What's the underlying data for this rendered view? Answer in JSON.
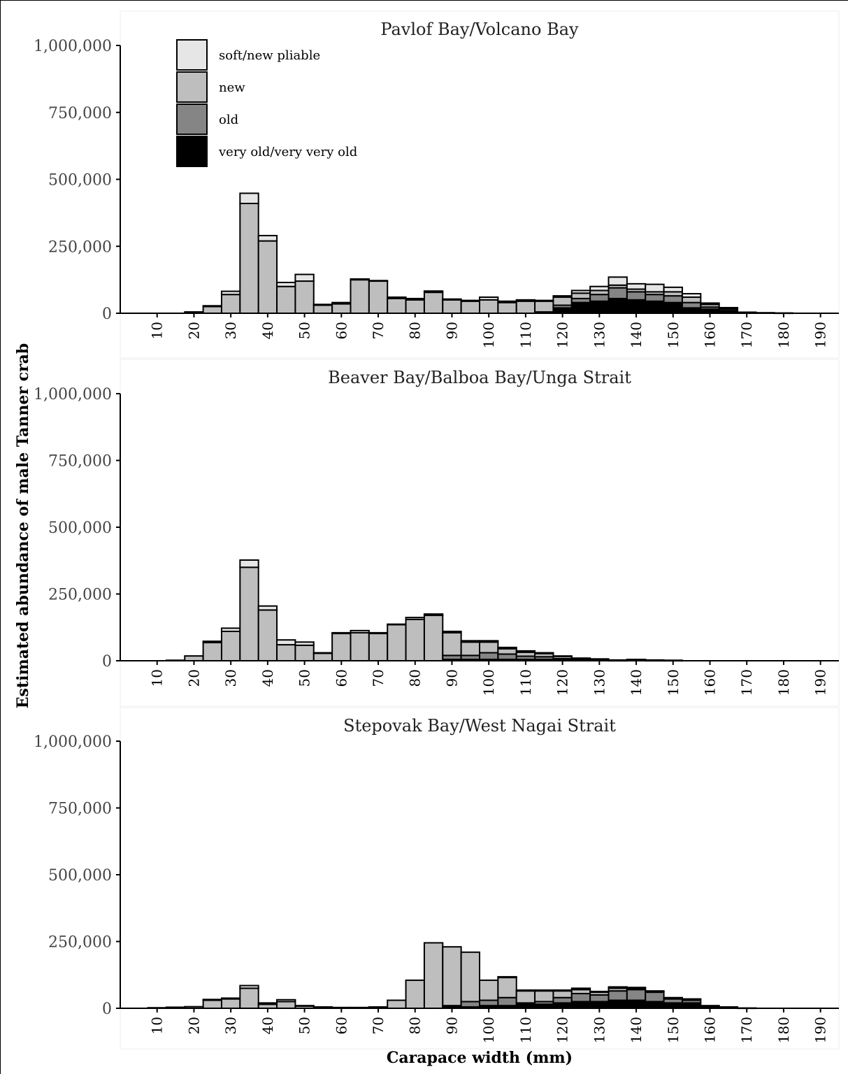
{
  "figure": {
    "ylabel": "Estimated abundance of male Tanner crab",
    "xlabel": "Carapace width (mm)"
  },
  "colors": {
    "soft_new_pliable": "#e6e6e6",
    "new": "#bebebe",
    "old": "#858585",
    "very_old": "#000000"
  },
  "legend": {
    "placement": "top-left (first panel)",
    "entries": [
      "soft/new pliable",
      "new",
      "old",
      "very old/very very old"
    ]
  },
  "chart_data": [
    {
      "type": "bar",
      "stacked": true,
      "title": "Pavlof Bay/Volcano Bay",
      "xlim": [
        0,
        195
      ],
      "ylim": [
        0,
        1000000
      ],
      "yticks": [
        "0",
        "250,000",
        "500,000",
        "750,000",
        "1,000,000"
      ],
      "xticks": [
        "10",
        "20",
        "30",
        "40",
        "50",
        "60",
        "70",
        "80",
        "90",
        "100",
        "110",
        "120",
        "130",
        "140",
        "150",
        "160",
        "170",
        "180",
        "190"
      ],
      "x": [
        20,
        25,
        30,
        35,
        40,
        45,
        50,
        55,
        60,
        65,
        70,
        75,
        80,
        85,
        90,
        95,
        100,
        105,
        110,
        115,
        120,
        125,
        130,
        135,
        140,
        145,
        150,
        155,
        160,
        165,
        170,
        175,
        180
      ],
      "series": [
        {
          "name": "very old/very very old",
          "values": [
            0,
            0,
            0,
            0,
            0,
            0,
            0,
            0,
            0,
            0,
            0,
            0,
            0,
            0,
            0,
            0,
            0,
            0,
            0,
            0,
            20000,
            40000,
            45000,
            55000,
            50000,
            45000,
            40000,
            20000,
            15000,
            10000,
            3000,
            2000,
            1000
          ]
        },
        {
          "name": "old",
          "values": [
            0,
            0,
            0,
            0,
            0,
            0,
            0,
            0,
            0,
            0,
            0,
            0,
            0,
            0,
            0,
            0,
            0,
            0,
            0,
            5000,
            10000,
            15000,
            25000,
            40000,
            30000,
            25000,
            25000,
            20000,
            8000,
            6000,
            1000,
            0,
            0
          ]
        },
        {
          "name": "new",
          "values": [
            5000,
            25000,
            70000,
            410000,
            270000,
            100000,
            120000,
            30000,
            35000,
            125000,
            120000,
            55000,
            50000,
            78000,
            50000,
            45000,
            50000,
            40000,
            45000,
            40000,
            30000,
            20000,
            15000,
            10000,
            10000,
            10000,
            15000,
            20000,
            10000,
            5000,
            0,
            0,
            0
          ]
        },
        {
          "name": "soft/new pliable",
          "values": [
            0,
            3000,
            12000,
            38000,
            20000,
            15000,
            25000,
            3000,
            5000,
            3000,
            2000,
            5000,
            5000,
            5000,
            3000,
            3000,
            10000,
            5000,
            5000,
            3000,
            5000,
            10000,
            15000,
            30000,
            20000,
            28000,
            17000,
            13000,
            5000,
            0,
            0,
            0,
            0
          ]
        }
      ]
    },
    {
      "type": "bar",
      "stacked": true,
      "title": "Beaver Bay/Balboa Bay/Unga Strait",
      "xlim": [
        0,
        195
      ],
      "ylim": [
        0,
        1000000
      ],
      "yticks": [
        "0",
        "250,000",
        "500,000",
        "750,000",
        "1,000,000"
      ],
      "xticks": [
        "10",
        "20",
        "30",
        "40",
        "50",
        "60",
        "70",
        "80",
        "90",
        "100",
        "110",
        "120",
        "130",
        "140",
        "150",
        "160",
        "170",
        "180",
        "190"
      ],
      "x": [
        15,
        20,
        25,
        30,
        35,
        40,
        45,
        50,
        55,
        60,
        65,
        70,
        75,
        80,
        85,
        90,
        95,
        100,
        105,
        110,
        115,
        120,
        125,
        130,
        135,
        140,
        145,
        150
      ],
      "series": [
        {
          "name": "very old/very very old",
          "values": [
            0,
            0,
            0,
            0,
            0,
            0,
            0,
            0,
            0,
            0,
            0,
            0,
            0,
            0,
            0,
            5000,
            5000,
            5000,
            5000,
            5000,
            5000,
            3000,
            2000,
            2000,
            1000,
            2000,
            1000,
            1000
          ]
        },
        {
          "name": "old",
          "values": [
            0,
            0,
            0,
            0,
            0,
            0,
            0,
            0,
            0,
            0,
            0,
            0,
            0,
            0,
            0,
            15000,
            15000,
            25000,
            20000,
            12000,
            10000,
            5000,
            3000,
            2000,
            1000,
            2000,
            1000,
            0
          ]
        },
        {
          "name": "new",
          "values": [
            2000,
            18000,
            68000,
            110000,
            350000,
            190000,
            60000,
            58000,
            28000,
            102000,
            105000,
            102000,
            135000,
            155000,
            170000,
            85000,
            50000,
            40000,
            20000,
            15000,
            12000,
            8000,
            3000,
            3000,
            1000,
            1000,
            1000,
            1000
          ]
        },
        {
          "name": "soft/new pliable",
          "values": [
            0,
            0,
            5000,
            12000,
            27000,
            15000,
            18000,
            12000,
            2000,
            3000,
            8000,
            3000,
            2000,
            7000,
            5000,
            5000,
            5000,
            5000,
            5000,
            5000,
            3000,
            2000,
            2000,
            0,
            0,
            0,
            0,
            0
          ]
        }
      ]
    },
    {
      "type": "bar",
      "stacked": true,
      "title": "Stepovak Bay/West Nagai Strait",
      "xlim": [
        0,
        195
      ],
      "ylim": [
        0,
        1000000
      ],
      "yticks": [
        "0",
        "250,000",
        "500,000",
        "750,000",
        "1,000,000"
      ],
      "xticks": [
        "10",
        "20",
        "30",
        "40",
        "50",
        "60",
        "70",
        "80",
        "90",
        "100",
        "110",
        "120",
        "130",
        "140",
        "150",
        "160",
        "170",
        "180",
        "190"
      ],
      "x": [
        10,
        15,
        20,
        25,
        30,
        35,
        40,
        45,
        50,
        55,
        60,
        65,
        70,
        75,
        80,
        85,
        90,
        95,
        100,
        105,
        110,
        115,
        120,
        125,
        130,
        135,
        140,
        145,
        150,
        155,
        160,
        165,
        170
      ],
      "series": [
        {
          "name": "very old/very very old",
          "values": [
            0,
            0,
            0,
            0,
            0,
            0,
            0,
            0,
            0,
            0,
            0,
            0,
            0,
            0,
            0,
            0,
            5000,
            5000,
            10000,
            10000,
            15000,
            15000,
            20000,
            25000,
            25000,
            30000,
            30000,
            25000,
            20000,
            20000,
            8000,
            3000,
            1000
          ]
        },
        {
          "name": "old",
          "values": [
            0,
            0,
            0,
            0,
            0,
            0,
            0,
            0,
            0,
            0,
            0,
            0,
            0,
            0,
            0,
            0,
            5000,
            20000,
            20000,
            30000,
            5000,
            10000,
            20000,
            30000,
            25000,
            35000,
            40000,
            35000,
            15000,
            10000,
            2000,
            2000,
            0
          ]
        },
        {
          "name": "new",
          "values": [
            2000,
            4000,
            6000,
            30000,
            35000,
            75000,
            15000,
            25000,
            8000,
            5000,
            3000,
            3000,
            5000,
            30000,
            105000,
            245000,
            220000,
            185000,
            75000,
            75000,
            45000,
            40000,
            25000,
            15000,
            10000,
            10000,
            5000,
            3000,
            3000,
            3000,
            0,
            0,
            0
          ]
        },
        {
          "name": "soft/new pliable",
          "values": [
            0,
            0,
            0,
            3000,
            3000,
            10000,
            5000,
            7000,
            2000,
            0,
            0,
            0,
            0,
            0,
            0,
            0,
            0,
            0,
            0,
            3000,
            3000,
            3000,
            3000,
            5000,
            3000,
            5000,
            3000,
            2000,
            2000,
            2000,
            0,
            0,
            0
          ]
        }
      ]
    }
  ]
}
